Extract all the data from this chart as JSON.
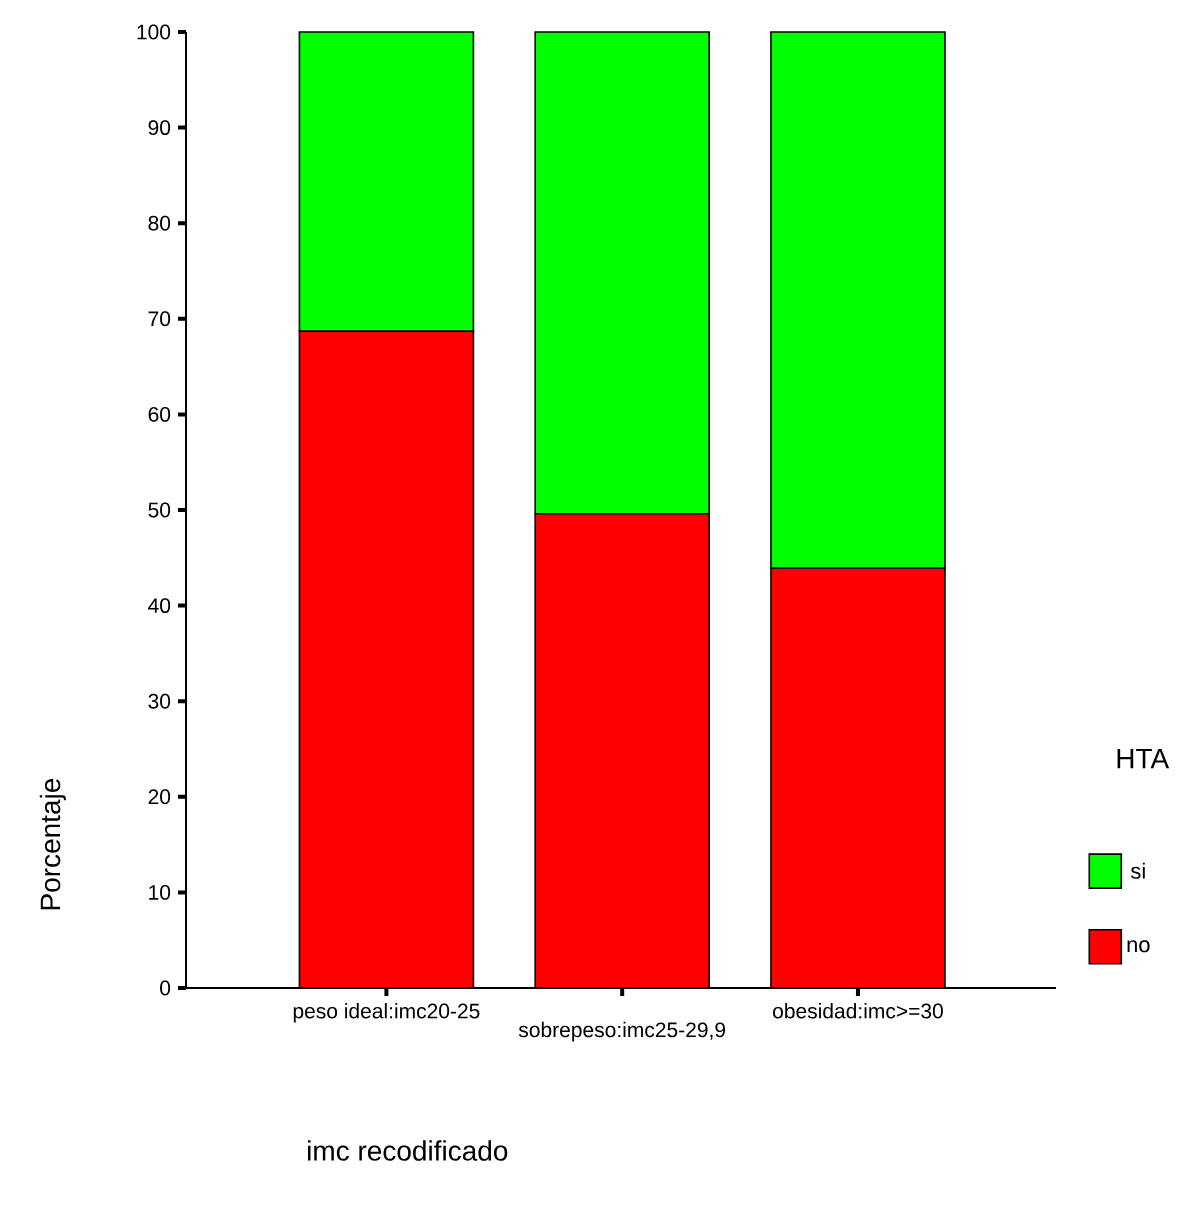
{
  "chart_data": {
    "type": "bar",
    "stacked": true,
    "categories": [
      "peso ideal:imc20-25",
      "sobrepeso:imc25-29,9",
      "obesidad:imc>=30"
    ],
    "series": [
      {
        "name": "no",
        "color": "#ff0000",
        "values": [
          68.7,
          49.6,
          43.9
        ]
      },
      {
        "name": "si",
        "color": "#00ff00",
        "values": [
          31.3,
          50.4,
          56.1
        ]
      }
    ],
    "ylim": [
      0,
      100
    ],
    "yticks": [
      0,
      10,
      20,
      30,
      40,
      50,
      60,
      70,
      80,
      90,
      100
    ],
    "xlabel": "imc recodificado",
    "ylabel": "Porcentaje",
    "legend": "right",
    "legend_title": "HTA"
  }
}
